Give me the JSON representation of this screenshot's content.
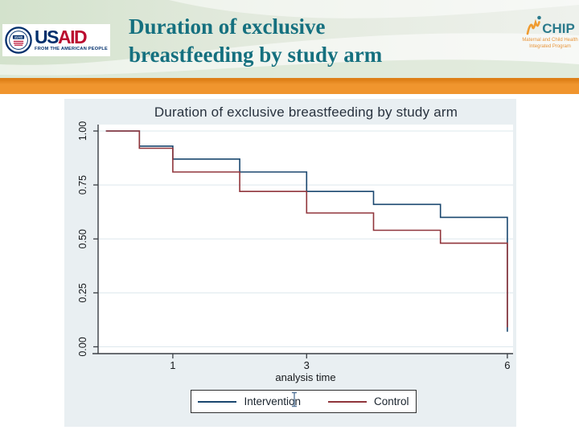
{
  "header": {
    "title_line1": "Duration of exclusive",
    "title_line2": "breastfeeding by study arm",
    "usaid_logo": {
      "wordmark_us": "US",
      "wordmark_aid": "AID",
      "tagline": "FROM THE AMERICAN PEOPLE"
    },
    "mchip_logo": {
      "wordmark": "CHIP",
      "tagline_line1": "Maternal and Child Health",
      "tagline_line2": "Integrated Program"
    }
  },
  "colors": {
    "accent_orange": "#F0952E",
    "slide_title_teal": "#15707F",
    "intervention_navy": "#1A476F",
    "control_maroon": "#90353B",
    "chart_background": "#E9EFF2",
    "usaid_blue": "#002F6C",
    "usaid_red": "#BA0C2F",
    "mchip_orange": "#EF9B30",
    "mchip_teal": "#2B7A8C"
  },
  "chart_data": {
    "type": "line",
    "subtype": "kaplan-meier-step",
    "title": "Duration of exclusive breastfeeding by study arm",
    "xlabel": "analysis time",
    "ylabel": "",
    "x_ticks": [
      "1",
      "3",
      "6"
    ],
    "y_ticks": [
      "0.00",
      "0.25",
      "0.50",
      "0.75",
      "1.00"
    ],
    "xlim": [
      -0.15,
      6.1
    ],
    "ylim": [
      0,
      1
    ],
    "grid": "horizontal",
    "legend_position": "bottom-center-boxed",
    "series": [
      {
        "name": "Intervention",
        "color": "#1A476F",
        "times": [
          0,
          0.5,
          1,
          2,
          3,
          4,
          5,
          6
        ],
        "survival": [
          1.0,
          0.93,
          0.87,
          0.81,
          0.72,
          0.66,
          0.6,
          0.07
        ]
      },
      {
        "name": "Control",
        "color": "#90353B",
        "times": [
          0,
          0.5,
          1,
          2,
          3,
          4,
          5,
          6
        ],
        "survival": [
          1.0,
          0.92,
          0.81,
          0.72,
          0.62,
          0.54,
          0.48,
          0.09
        ]
      }
    ]
  }
}
